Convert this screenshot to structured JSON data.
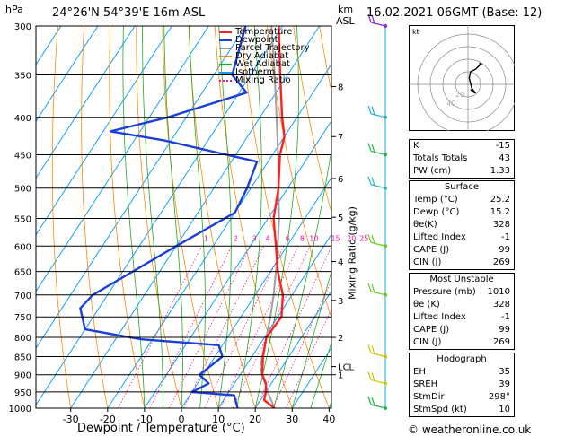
{
  "header": {
    "location": "24°26'N  54°39'E  16m  ASL",
    "datetime": "16.02.2021  06GMT  (Base: 12)",
    "hpa_label": "hPa",
    "km_label": "km",
    "asl_label": "ASL",
    "mixing_axis_label": "Mixing Ratio (g/kg)",
    "x_axis_label": "Dewpoint / Temperature (°C)",
    "credit": "© weatheronline.co.uk"
  },
  "legend": [
    {
      "label": "Temperature",
      "color": "#ff2020"
    },
    {
      "label": "Dewpoint",
      "color": "#1c3fd8"
    },
    {
      "label": "Parcel Trajectory",
      "color": "#999999"
    },
    {
      "label": "Dry Adiabat",
      "color": "#ff8800"
    },
    {
      "label": "Wet Adiabat",
      "color": "#22aa22"
    },
    {
      "label": "Isotherm",
      "color": "#10a0ff"
    },
    {
      "label": "Mixing Ratio",
      "color": "#ee1199"
    }
  ],
  "chart_data": {
    "type": "line",
    "pressure_levels": [
      300,
      350,
      400,
      450,
      500,
      550,
      600,
      650,
      700,
      750,
      800,
      850,
      900,
      950,
      1000
    ],
    "x_ticks": [
      -30,
      -20,
      -10,
      0,
      10,
      20,
      30,
      40
    ],
    "xlim": [
      -40,
      40
    ],
    "ylim": [
      1000,
      300
    ],
    "km_ticks": [
      {
        "label": "8",
        "p": 363
      },
      {
        "label": "7",
        "p": 425
      },
      {
        "label": "6",
        "p": 485
      },
      {
        "label": "5",
        "p": 548
      },
      {
        "label": "4",
        "p": 630
      },
      {
        "label": "3",
        "p": 712
      },
      {
        "label": "2",
        "p": 800
      },
      {
        "label": "1",
        "p": 900
      },
      {
        "label": "LCL",
        "p": 877
      }
    ],
    "mixing_ratios": [
      1,
      2,
      3,
      4,
      6,
      8,
      10,
      15,
      20,
      25
    ],
    "mixing_label_p": 585,
    "temperature": [
      {
        "p": 1000,
        "t": 25.2
      },
      {
        "p": 975,
        "t": 21
      },
      {
        "p": 950,
        "t": 20
      },
      {
        "p": 925,
        "t": 18.5
      },
      {
        "p": 900,
        "t": 16
      },
      {
        "p": 850,
        "t": 13
      },
      {
        "p": 800,
        "t": 10.5
      },
      {
        "p": 750,
        "t": 11
      },
      {
        "p": 700,
        "t": 7.5
      },
      {
        "p": 650,
        "t": 2
      },
      {
        "p": 600,
        "t": -3
      },
      {
        "p": 550,
        "t": -8.5
      },
      {
        "p": 500,
        "t": -12.5
      },
      {
        "p": 450,
        "t": -18
      },
      {
        "p": 425,
        "t": -20
      },
      {
        "p": 400,
        "t": -24
      },
      {
        "p": 350,
        "t": -32
      },
      {
        "p": 300,
        "t": -41
      }
    ],
    "dewpoint": [
      {
        "p": 1000,
        "t": 15.2
      },
      {
        "p": 960,
        "t": 12
      },
      {
        "p": 950,
        "t": 0
      },
      {
        "p": 925,
        "t": 3
      },
      {
        "p": 900,
        "t": -1
      },
      {
        "p": 850,
        "t": 2
      },
      {
        "p": 820,
        "t": -1
      },
      {
        "p": 805,
        "t": -23
      },
      {
        "p": 780,
        "t": -40
      },
      {
        "p": 730,
        "t": -45
      },
      {
        "p": 700,
        "t": -44
      },
      {
        "p": 600,
        "t": -30
      },
      {
        "p": 540,
        "t": -20
      },
      {
        "p": 500,
        "t": -21
      },
      {
        "p": 460,
        "t": -23
      },
      {
        "p": 430,
        "t": -52
      },
      {
        "p": 418,
        "t": -68
      },
      {
        "p": 400,
        "t": -55
      },
      {
        "p": 370,
        "t": -38
      },
      {
        "p": 350,
        "t": -45
      },
      {
        "p": 300,
        "t": -50
      }
    ],
    "parcel": [
      {
        "p": 1000,
        "t": 25.2
      },
      {
        "p": 950,
        "t": 20.5
      },
      {
        "p": 900,
        "t": 16
      },
      {
        "p": 877,
        "t": 14
      },
      {
        "p": 850,
        "t": 12.8
      },
      {
        "p": 800,
        "t": 10.5
      },
      {
        "p": 750,
        "t": 8
      },
      {
        "p": 700,
        "t": 5
      },
      {
        "p": 650,
        "t": 1.5
      },
      {
        "p": 600,
        "t": -2.5
      },
      {
        "p": 550,
        "t": -7
      },
      {
        "p": 500,
        "t": -12.5
      },
      {
        "p": 450,
        "t": -18.5
      },
      {
        "p": 400,
        "t": -25.5
      },
      {
        "p": 350,
        "t": -33.5
      },
      {
        "p": 300,
        "t": -43
      }
    ],
    "wind_barbs": [
      {
        "p": 300,
        "color": "#8a2be2"
      },
      {
        "p": 400,
        "color": "#20b0d8"
      },
      {
        "p": 450,
        "color": "#22b84a"
      },
      {
        "p": 500,
        "color": "#20c0b8"
      },
      {
        "p": 600,
        "color": "#66cc22"
      },
      {
        "p": 700,
        "color": "#66cc22"
      },
      {
        "p": 850,
        "color": "#c8c800"
      },
      {
        "p": 925,
        "color": "#c8c800"
      },
      {
        "p": 1000,
        "color": "#22b84a"
      }
    ]
  },
  "hodograph": {
    "label": "kt",
    "ring_labels": [
      "20",
      "40"
    ],
    "trace": [
      [
        2,
        -4
      ],
      [
        4,
        -6
      ],
      [
        6,
        -7
      ],
      [
        3,
        -3
      ],
      [
        1,
        5
      ],
      [
        2,
        10
      ],
      [
        6,
        12
      ],
      [
        10,
        16
      ]
    ]
  },
  "stats": {
    "general": [
      {
        "label": "K",
        "value": "-15"
      },
      {
        "label": "Totals Totals",
        "value": "43"
      },
      {
        "label": "PW (cm)",
        "value": "1.33"
      }
    ],
    "surface": {
      "title": "Surface",
      "rows": [
        {
          "label": "Temp (°C)",
          "value": "25.2"
        },
        {
          "label": "Dewp (°C)",
          "value": "15.2"
        },
        {
          "label": "θe(K)",
          "value": "328"
        },
        {
          "label": "Lifted Index",
          "value": "-1"
        },
        {
          "label": "CAPE (J)",
          "value": "99"
        },
        {
          "label": "CIN (J)",
          "value": "269"
        }
      ]
    },
    "most_unstable": {
      "title": "Most Unstable",
      "rows": [
        {
          "label": "Pressure (mb)",
          "value": "1010"
        },
        {
          "label": "θe (K)",
          "value": "328"
        },
        {
          "label": "Lifted Index",
          "value": "-1"
        },
        {
          "label": "CAPE (J)",
          "value": "99"
        },
        {
          "label": "CIN (J)",
          "value": "269"
        }
      ]
    },
    "hodograph_stats": {
      "title": "Hodograph",
      "rows": [
        {
          "label": "EH",
          "value": "35"
        },
        {
          "label": "SREH",
          "value": "39"
        },
        {
          "label": "StmDir",
          "value": "298°"
        },
        {
          "label": "StmSpd (kt)",
          "value": "10"
        }
      ]
    }
  }
}
